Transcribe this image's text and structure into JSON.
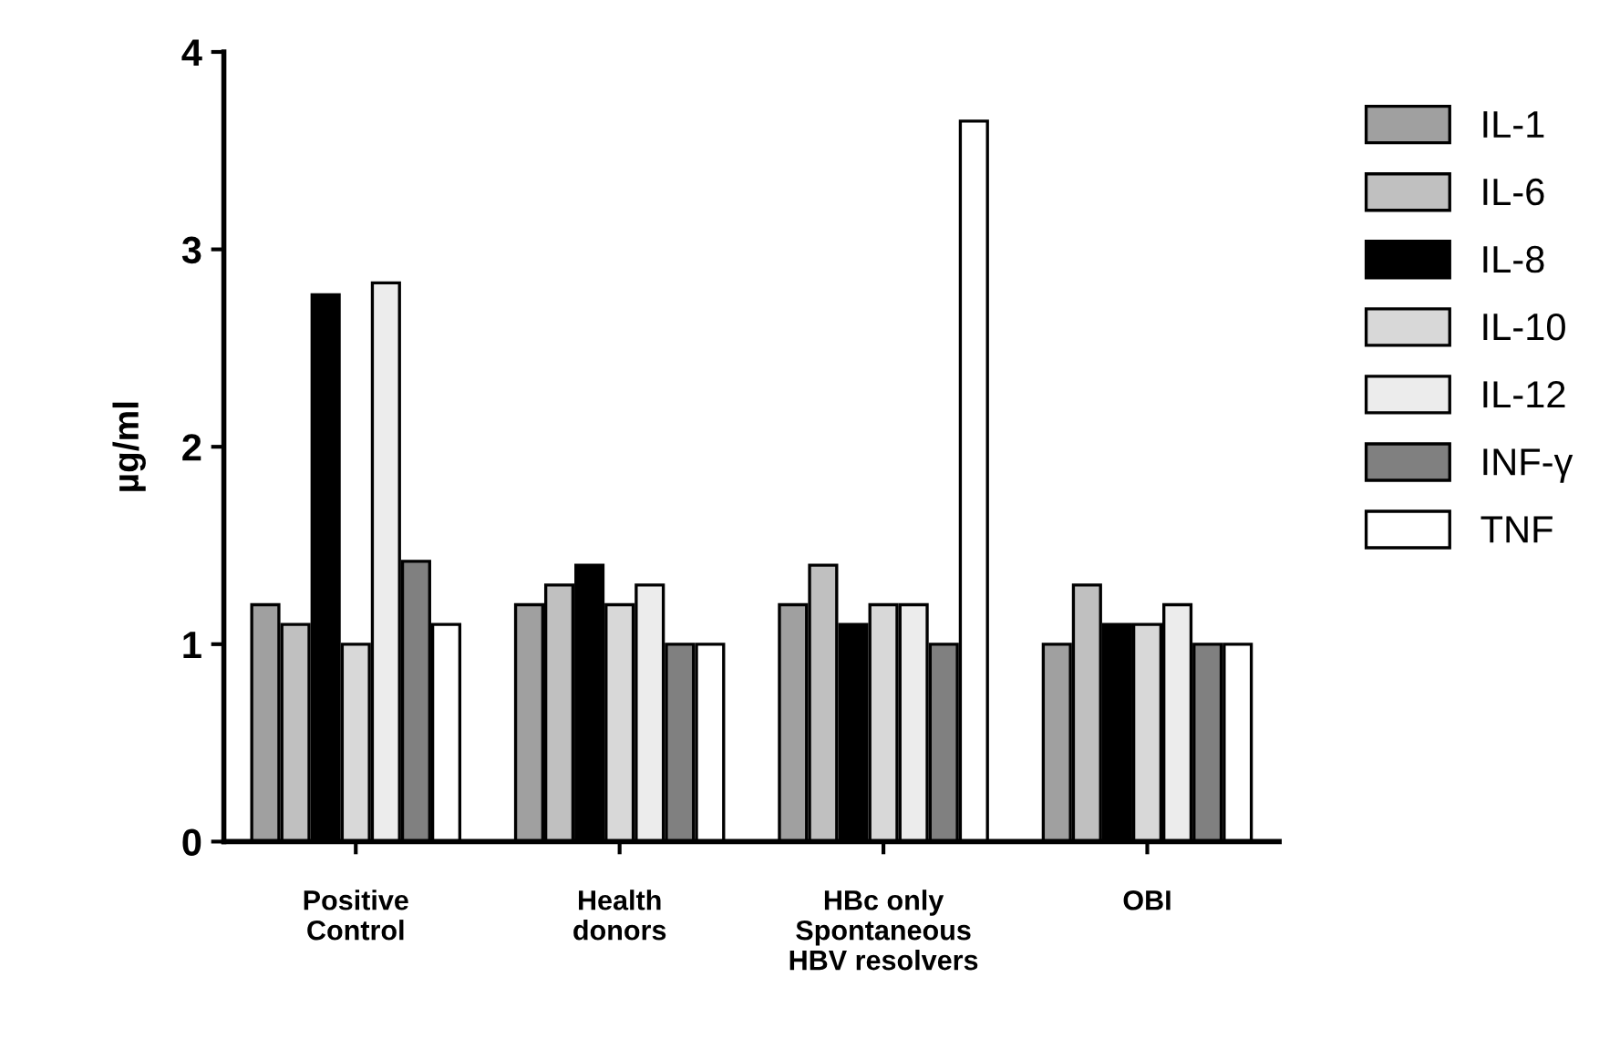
{
  "chart_data": {
    "type": "bar",
    "ylabel": "µg/ml",
    "categories": [
      "Positive\nControl",
      "Health\ndonors",
      "HBc only\nSpontaneous\nHBV resolvers",
      "OBI"
    ],
    "series": [
      {
        "name": "IL-1",
        "color": "#a0a0a0",
        "values": [
          1.2,
          1.2,
          1.2,
          1.0
        ]
      },
      {
        "name": "IL-6",
        "color": "#c0c0c0",
        "values": [
          1.1,
          1.3,
          1.4,
          1.3
        ]
      },
      {
        "name": "IL-8",
        "color": "#000000",
        "values": [
          2.77,
          1.4,
          1.1,
          1.1
        ]
      },
      {
        "name": "IL-10",
        "color": "#d8d8d8",
        "values": [
          1.0,
          1.2,
          1.2,
          1.1
        ]
      },
      {
        "name": "IL-12",
        "color": "#ececec",
        "values": [
          2.83,
          1.3,
          1.2,
          1.2
        ]
      },
      {
        "name": "INF-γ",
        "color": "#808080",
        "values": [
          1.42,
          1.0,
          1.0,
          1.0
        ]
      },
      {
        "name": "TNF",
        "color": "#ffffff",
        "values": [
          1.1,
          1.0,
          3.65,
          1.0
        ]
      }
    ],
    "ylim": [
      0,
      4
    ],
    "yticks": [
      0,
      1,
      2,
      3,
      4
    ],
    "grid": false,
    "legend": "right"
  }
}
